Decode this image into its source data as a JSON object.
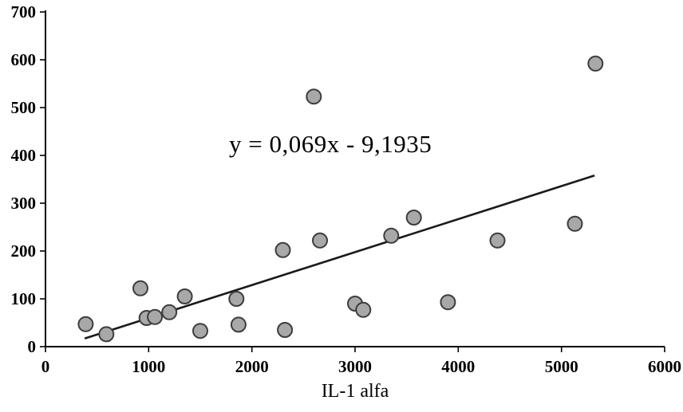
{
  "chart_data": {
    "type": "scatter",
    "title": "",
    "xlabel": "IL-1 alfa",
    "ylabel": "",
    "xlim": [
      0,
      6000
    ],
    "ylim": [
      0,
      700
    ],
    "x_ticks": [
      0,
      1000,
      2000,
      3000,
      4000,
      5000,
      6000
    ],
    "y_ticks": [
      0,
      100,
      200,
      300,
      400,
      500,
      600,
      700
    ],
    "grid": false,
    "legend": false,
    "annotation": "y = 0,069x - 9,1935",
    "points": [
      [
        390,
        47
      ],
      [
        590,
        26
      ],
      [
        920,
        122
      ],
      [
        980,
        60
      ],
      [
        1060,
        62
      ],
      [
        1200,
        72
      ],
      [
        1350,
        105
      ],
      [
        1500,
        33
      ],
      [
        1850,
        100
      ],
      [
        1870,
        46
      ],
      [
        2300,
        202
      ],
      [
        2320,
        35
      ],
      [
        2600,
        523
      ],
      [
        2660,
        222
      ],
      [
        3000,
        90
      ],
      [
        3080,
        77
      ],
      [
        3350,
        232
      ],
      [
        3570,
        270
      ],
      [
        3900,
        93
      ],
      [
        4380,
        222
      ],
      [
        5130,
        257
      ],
      [
        5330,
        592
      ]
    ],
    "trendline": {
      "slope": 0.069,
      "intercept": -9.1935,
      "x_start": 380,
      "x_end": 5320
    },
    "colors": {
      "marker_fill": "#a8a8a8",
      "marker_stroke": "#3d3d3d",
      "axis": "#000000",
      "trendline": "#1a1a1a",
      "text": "#000000"
    }
  }
}
